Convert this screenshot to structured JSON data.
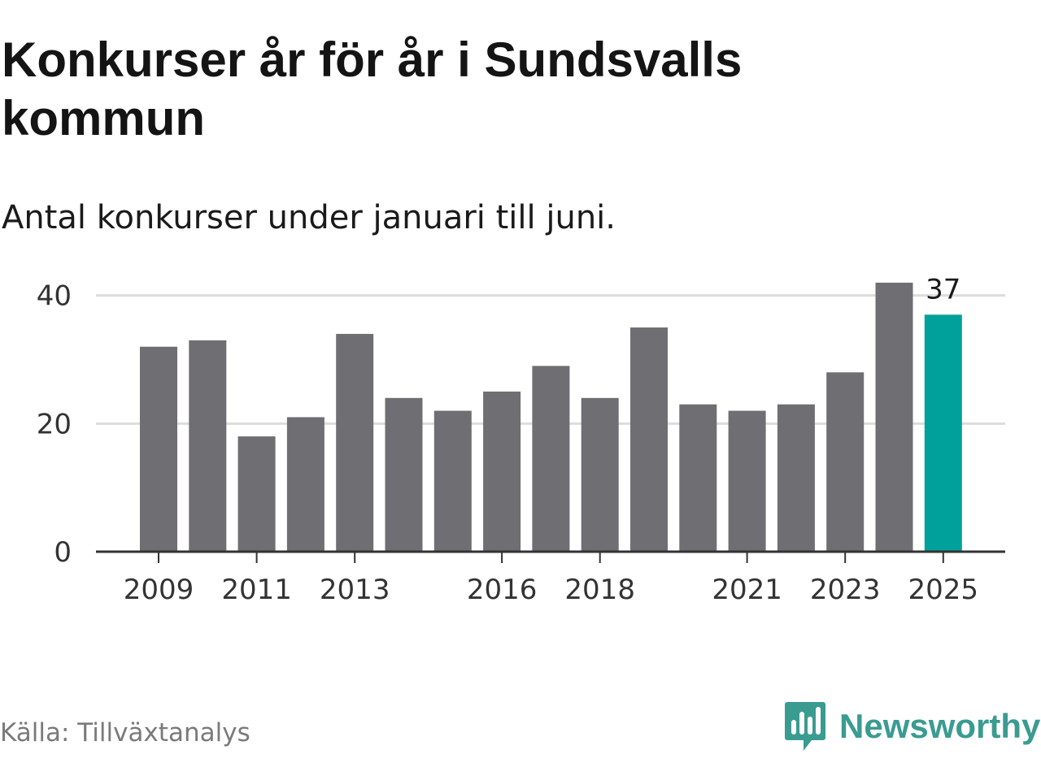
{
  "title": "Konkurser år för år i Sundsvalls kommun",
  "subtitle": "Antal konkurser under januari till juni.",
  "source": "Källa: Tillväxtanalys",
  "brand": {
    "name": "Newsworthy",
    "icon": "chart-speech-bubble-icon",
    "color": "#3a9b91"
  },
  "chart_data": {
    "type": "bar",
    "categories": [
      "2009",
      "2010",
      "2011",
      "2012",
      "2013",
      "2014",
      "2015",
      "2016",
      "2017",
      "2018",
      "2019",
      "2020",
      "2021",
      "2022",
      "2023",
      "2024",
      "2025"
    ],
    "values": [
      32,
      33,
      18,
      21,
      34,
      24,
      22,
      25,
      29,
      24,
      35,
      23,
      22,
      23,
      28,
      42,
      37
    ],
    "x_tick_labels": [
      "2009",
      "2011",
      "2013",
      "2016",
      "2018",
      "2021",
      "2023",
      "2025"
    ],
    "y_ticks": [
      0,
      20,
      40
    ],
    "ylim": [
      0,
      43
    ],
    "grid": true,
    "highlight": {
      "category": "2025",
      "label": "37"
    },
    "colors": {
      "bar": "#6f6e73",
      "highlight": "#00a19a",
      "grid": "#dcdcdc",
      "axis": "#333333"
    },
    "xlabel": "",
    "ylabel": ""
  }
}
